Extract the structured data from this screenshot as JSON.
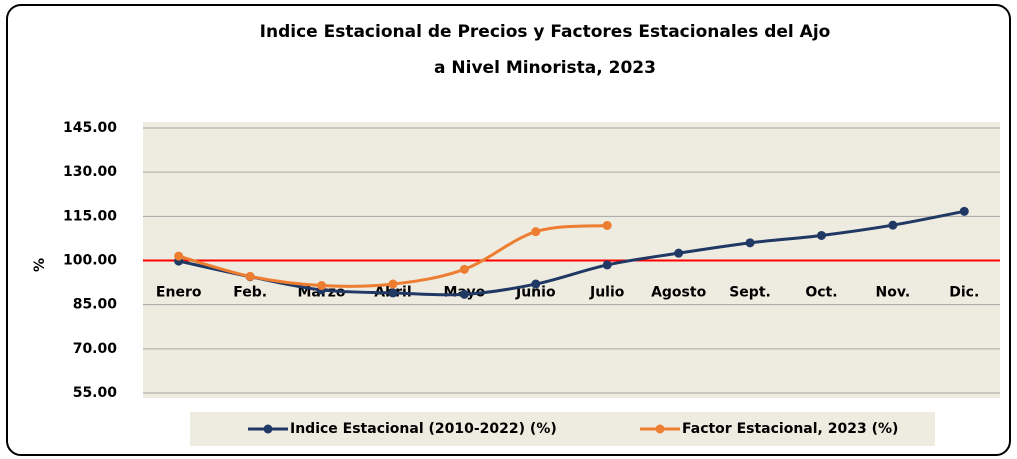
{
  "chart_data": {
    "type": "line",
    "title": [
      "Indice Estacional de Precios y Factores Estacionales del Ajo",
      "a Nivel Minorista, 2023"
    ],
    "ylabel": "%",
    "categories": [
      "Enero",
      "Feb.",
      "Marzo",
      "Abril",
      "Mayo",
      "Junio",
      "Julio",
      "Agosto",
      "Sept.",
      "Oct.",
      "Nov.",
      "Dic."
    ],
    "series": [
      {
        "name": "Indice Estacional (2010-2022) (%)",
        "color": "#1f3864",
        "values": [
          99.8,
          94.5,
          90.0,
          89.0,
          88.5,
          92.0,
          98.5,
          102.5,
          106.0,
          108.5,
          112.0,
          116.7
        ]
      },
      {
        "name": "Factor Estacional, 2023 (%)",
        "color": "#ed7d31",
        "values": [
          101.5,
          94.6,
          91.5,
          92.0,
          97.0,
          109.8,
          111.9,
          null,
          null,
          null,
          null,
          null
        ]
      }
    ],
    "ylim": [
      55,
      145
    ],
    "yticks": [
      {
        "value": 145,
        "label": "145.00"
      },
      {
        "value": 130,
        "label": "130.00"
      },
      {
        "value": 115,
        "label": "115.00"
      },
      {
        "value": 100,
        "label": "100.00"
      },
      {
        "value": 85,
        "label": "85.00"
      },
      {
        "value": 70,
        "label": "70.00"
      },
      {
        "value": 55,
        "label": "55.00"
      }
    ],
    "grid": true,
    "x_axis_at": 100,
    "reference_line": {
      "value": 100,
      "color": "#ff0000"
    },
    "legend": "bottom"
  }
}
